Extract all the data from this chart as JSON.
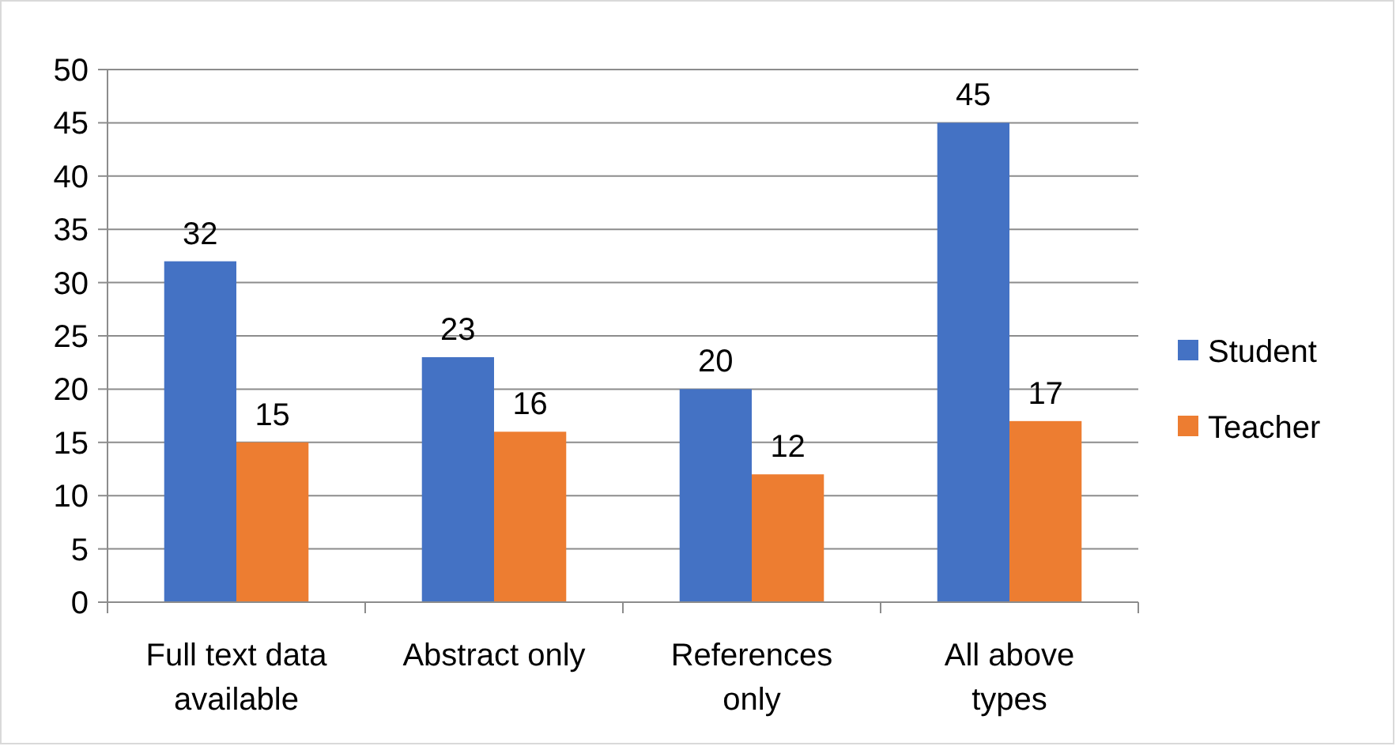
{
  "chart_data": {
    "type": "bar",
    "categories": [
      "Full text data available",
      "Abstract only",
      "References only",
      "All above types"
    ],
    "series": [
      {
        "name": "Student",
        "color": "#4472c4",
        "values": [
          32,
          23,
          20,
          45
        ]
      },
      {
        "name": "Teacher",
        "color": "#ed7d31",
        "values": [
          15,
          16,
          12,
          17
        ]
      }
    ],
    "ylim": [
      0,
      50
    ],
    "yticks": [
      0,
      5,
      10,
      15,
      20,
      25,
      30,
      35,
      40,
      45,
      50
    ],
    "grid": "y",
    "legend": "right",
    "data_labels": true
  }
}
